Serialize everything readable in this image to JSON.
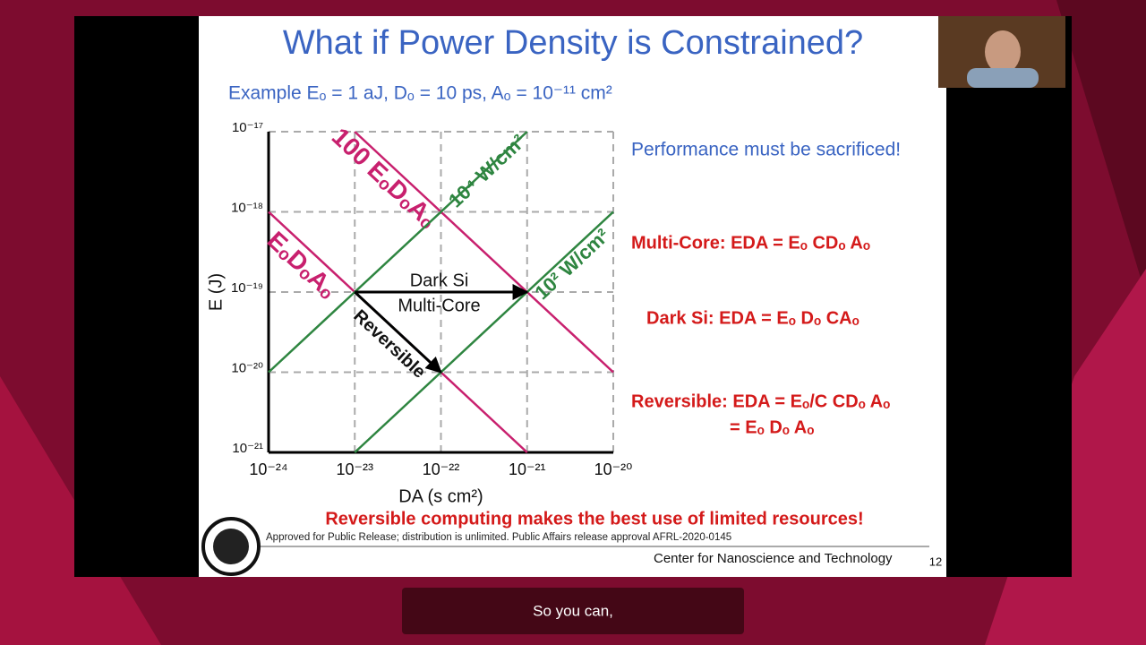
{
  "slide": {
    "title": "What if Power Density is Constrained?",
    "example": "Example Eₒ = 1 aJ, Dₒ = 10 ps,  Aₒ = 10⁻¹¹ cm²",
    "notes": [
      "Performance must be sacrificed!",
      "Multi-Core: EDA = Eₒ CDₒ Aₒ",
      "Dark Si: EDA = Eₒ Dₒ CAₒ",
      "Reversible: EDA = Eₒ/C CDₒ Aₒ",
      "= Eₒ Dₒ Aₒ"
    ],
    "headline": "Reversible computing makes the best use of limited resources!",
    "approval": "Approved for Public Release; distribution is unlimited. Public Affairs release approval AFRL-2020-0145",
    "center": "Center for Nanoscience and Technology",
    "page_number": "12"
  },
  "caption": "So you can,",
  "chart_data": {
    "type": "line",
    "x_label": "DA (s cm²)",
    "y_label": "E (J)",
    "xscale": "log",
    "yscale": "log",
    "grid": true,
    "xlim": [
      1e-24,
      1e-20
    ],
    "ylim": [
      1e-21,
      1e-17
    ],
    "xticks": [
      {
        "value": 1e-24,
        "label": "10⁻²⁴"
      },
      {
        "value": 1e-23,
        "label": "10⁻²³"
      },
      {
        "value": 1e-22,
        "label": "10⁻²²"
      },
      {
        "value": 1e-21,
        "label": "10⁻²¹"
      },
      {
        "value": 1e-20,
        "label": "10⁻²⁰"
      }
    ],
    "yticks": [
      {
        "value": 1e-21,
        "label": "10⁻²¹"
      },
      {
        "value": 1e-20,
        "label": "10⁻²⁰"
      },
      {
        "value": 1e-19,
        "label": "10⁻¹⁹"
      },
      {
        "value": 1e-18,
        "label": "10⁻¹⁸"
      },
      {
        "value": 1e-17,
        "label": "10⁻¹⁷"
      }
    ],
    "series": [
      {
        "name": "100 EₒDₒAₒ",
        "color": "#c8206e",
        "x": [
          1e-23,
          1e-20
        ],
        "values": [
          1e-17,
          1e-20
        ]
      },
      {
        "name": "EₒDₒAₒ",
        "color": "#c8206e",
        "x": [
          1e-24,
          1e-21
        ],
        "values": [
          1e-18,
          1e-21
        ]
      },
      {
        "name": "10⁴ W/cm²",
        "color": "#2e8540",
        "x": [
          1e-24,
          1e-21
        ],
        "values": [
          1e-20,
          1e-17
        ]
      },
      {
        "name": "10² W/cm²",
        "color": "#2e8540",
        "x": [
          1e-23,
          1e-20
        ],
        "values": [
          1e-21,
          1e-18
        ]
      }
    ],
    "annotations": [
      {
        "lines": [
          "Dark Si",
          "Multi-Core"
        ],
        "from": [
          1e-23,
          1e-19
        ],
        "to": [
          1e-21,
          1e-19
        ]
      },
      {
        "lines": [
          "Reversible"
        ],
        "from": [
          1e-23,
          1e-19
        ],
        "to": [
          1e-22,
          1e-20
        ]
      }
    ]
  }
}
